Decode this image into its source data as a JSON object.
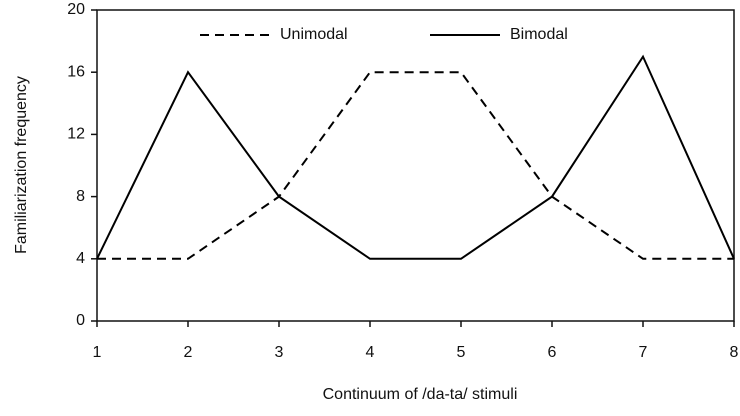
{
  "chart_data": {
    "type": "line",
    "xlabel": "Continuum of /da-ta/ stimuli",
    "ylabel": "Familiarization  frequency",
    "x": [
      1,
      2,
      3,
      4,
      5,
      6,
      7,
      8
    ],
    "series": [
      {
        "name": "Unimodal",
        "color": "#000000",
        "dash": true,
        "values": [
          4,
          4,
          8,
          16,
          16,
          8,
          4,
          4
        ]
      },
      {
        "name": "Bimodal",
        "color": "#000000",
        "dash": false,
        "values": [
          4,
          16,
          8,
          4,
          4,
          8,
          17,
          4
        ]
      }
    ],
    "xlim": [
      1,
      8
    ],
    "xticks": [
      1,
      2,
      3,
      4,
      5,
      6,
      7,
      8
    ],
    "ylim": [
      0,
      20
    ],
    "yticks": [
      0,
      4,
      8,
      12,
      16,
      20
    ],
    "grid": false,
    "legend": "top"
  }
}
